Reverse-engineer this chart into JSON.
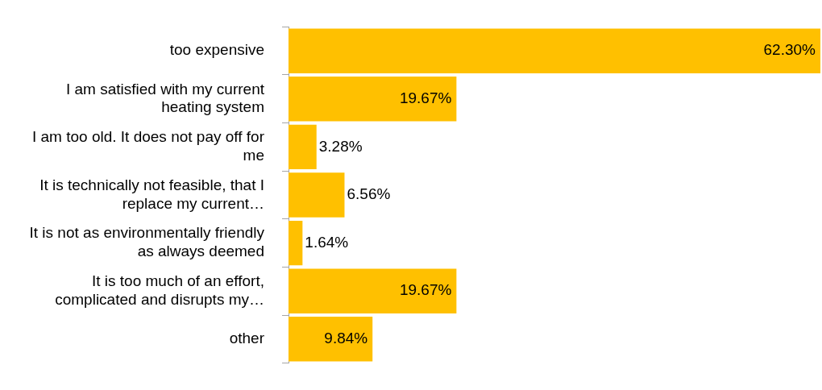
{
  "chart_data": {
    "type": "bar",
    "orientation": "horizontal",
    "categories": [
      "too expensive",
      "I am satisfied with my current heating system",
      "I am too old. It does not pay off for me",
      "It is technically not feasible, that I replace my current…",
      "It is not as environmentally friendly as always deemed",
      "It is too much of an effort, complicated and disrupts my…",
      "other"
    ],
    "values": [
      62.3,
      19.67,
      3.28,
      6.56,
      1.64,
      19.67,
      9.84
    ],
    "value_labels": [
      "62.30%",
      "19.67%",
      "3.28%",
      "6.56%",
      "1.64%",
      "19.67%",
      "9.84%"
    ],
    "color": "#ffc000"
  }
}
